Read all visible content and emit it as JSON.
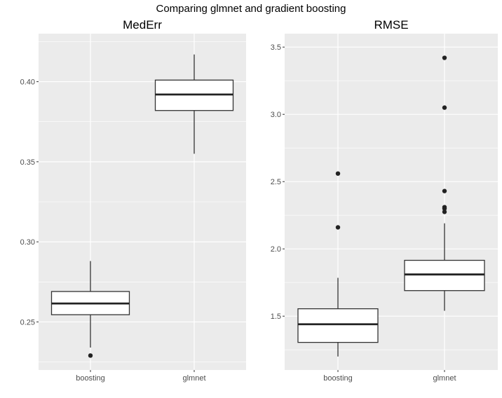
{
  "figure": {
    "title": "Comparing glmnet and gradient boosting"
  },
  "chart_data": [
    {
      "type": "boxplot",
      "title": "MedErr",
      "categories": [
        "boosting",
        "glmnet"
      ],
      "ylim": [
        0.22,
        0.43
      ],
      "yticks": [
        0.25,
        0.3,
        0.35,
        0.4
      ],
      "ytick_labels": [
        "0.25",
        "0.30",
        "0.35",
        "0.40"
      ],
      "grid": true,
      "boxes": [
        {
          "category": "boosting",
          "lower_whisker": 0.234,
          "q1": 0.2545,
          "median": 0.2615,
          "q3": 0.269,
          "upper_whisker": 0.288,
          "outliers": [
            0.229
          ]
        },
        {
          "category": "glmnet",
          "lower_whisker": 0.355,
          "q1": 0.382,
          "median": 0.392,
          "q3": 0.401,
          "upper_whisker": 0.417,
          "outliers": []
        }
      ]
    },
    {
      "type": "boxplot",
      "title": "RMSE",
      "categories": [
        "boosting",
        "glmnet"
      ],
      "ylim": [
        1.1,
        3.6
      ],
      "yticks": [
        1.5,
        2.0,
        2.5,
        3.0,
        3.5
      ],
      "ytick_labels": [
        "1.5",
        "2.0",
        "2.5",
        "3.0",
        "3.5"
      ],
      "grid": true,
      "boxes": [
        {
          "category": "boosting",
          "lower_whisker": 1.2,
          "q1": 1.305,
          "median": 1.44,
          "q3": 1.555,
          "upper_whisker": 1.785,
          "outliers": [
            2.16,
            2.56
          ]
        },
        {
          "category": "glmnet",
          "lower_whisker": 1.54,
          "q1": 1.69,
          "median": 1.81,
          "q3": 1.915,
          "upper_whisker": 2.19,
          "outliers": [
            2.275,
            2.3,
            2.31,
            2.43,
            3.05,
            3.42
          ]
        }
      ]
    }
  ]
}
